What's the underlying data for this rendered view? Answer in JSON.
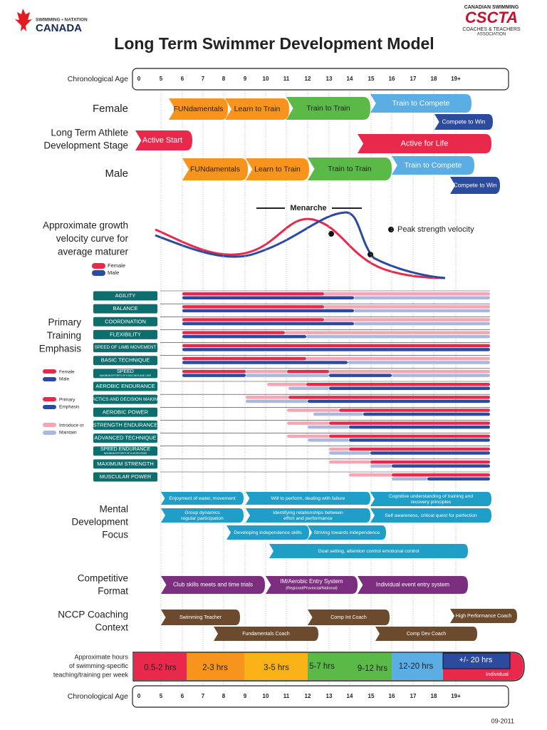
{
  "header": {
    "logo_left": {
      "line1": "SWIMMING • NATATION",
      "line2": "CANADA"
    },
    "logo_right": {
      "line1": "CANADIAN SWIMMING",
      "line2": "CSCTA",
      "line3": "COACHES & TEACHERS",
      "line4": "ASSOCIATION"
    },
    "title": "Long Term Swimmer Development Model"
  },
  "age_axis": {
    "label": "Chronological Age",
    "ages": [
      "0",
      "5",
      "6",
      "7",
      "8",
      "9",
      "10",
      "11",
      "12",
      "13",
      "14",
      "15",
      "16",
      "17",
      "18",
      "19+"
    ]
  },
  "ltad": {
    "female_label": "Female",
    "stage_label": [
      "Long Term Athlete",
      "Development Stage"
    ],
    "male_label": "Male",
    "female_stages": [
      "FUNdamentals",
      "Learn to Train",
      "Train to Train",
      "Train to Compete",
      "Compete to Win"
    ],
    "shared_stages": [
      "Active Start",
      "Active for Life"
    ],
    "male_stages": [
      "FUNdamentals",
      "Learn to Train",
      "Train to Train",
      "Train to Compete",
      "Compete to Win"
    ]
  },
  "growth": {
    "label": [
      "Approximate growth",
      "velocity curve for",
      "average maturer"
    ],
    "legend": [
      "Female",
      "Male"
    ],
    "menarche": "Menarche",
    "peak_strength": "Peak strength velocity"
  },
  "training": {
    "label": [
      "Primary",
      "Training",
      "Emphasis"
    ],
    "legend": {
      "sexes": [
        "Female",
        "Male"
      ],
      "primary": [
        "Primary",
        "Emphasis"
      ],
      "introduce": [
        "Introduce or",
        "Maintain"
      ]
    },
    "items": [
      {
        "name": "AGILITY"
      },
      {
        "name": "BALANCE"
      },
      {
        "name": "COORDINATION"
      },
      {
        "name": "FLEXIBILITY"
      },
      {
        "name": "SPEED OF LIMB MOVEMENT"
      },
      {
        "name": "BASIC TECHNIQUE"
      },
      {
        "name": "SPEED",
        "note": "MAXIMUM EFFORTS OF 8 SECONDS AND LESS"
      },
      {
        "name": "AEROBIC ENDURANCE"
      },
      {
        "name": "TACTICS AND DECISION MAKING"
      },
      {
        "name": "AEROBIC POWER"
      },
      {
        "name": "STRENGTH ENDURANCE"
      },
      {
        "name": "ADVANCED TECHNIQUE"
      },
      {
        "name": "SPEED ENDURANCE",
        "note": "MAXIMUM EFFORTS OF 8-45 SECONDS"
      },
      {
        "name": "MAXIMUM STRENGTH"
      },
      {
        "name": "MUSCULAR POWER"
      }
    ]
  },
  "mental": {
    "label": [
      "Mental",
      "Development",
      "Focus"
    ],
    "items": [
      [
        "Enjoyment of water, movement"
      ],
      [
        "Group dynamics",
        "regular participation"
      ],
      [
        "Will to perform, dealing with failure"
      ],
      [
        "Identifying relationships between",
        "effort and performance"
      ],
      [
        "Cognitive understanding of training and",
        "recovery principles"
      ],
      [
        "Self awareness, critical quest for perfection"
      ],
      [
        "Developing independence skills"
      ],
      [
        "Striving towards independence"
      ],
      [
        "Goal setting, attention control emotional control"
      ]
    ]
  },
  "competitive": {
    "label": [
      "Competitive",
      "Format"
    ],
    "items": [
      [
        "Club skills meets and time trials"
      ],
      [
        "IM/Aerobic Entry System",
        "(Regional/Provincial/National)"
      ],
      [
        "Individual event entry system"
      ]
    ]
  },
  "nccp": {
    "label": [
      "NCCP Coaching",
      "Context"
    ],
    "items": [
      "Swimming Teacher",
      "Fundamentals Coach",
      "Comp Int Coach",
      "Comp Dev Coach",
      "High Performance Coach"
    ]
  },
  "hours": {
    "label": [
      "Approximate hours",
      "of swimming-specific",
      "teaching/training per week"
    ],
    "items": [
      "0.5-2 hrs",
      "2-3 hrs",
      "3-5 hrs",
      "5-7 hrs",
      "9-12 hrs",
      "12-20 hrs",
      "+/- 20 hrs"
    ],
    "individual": "Individual"
  },
  "footer": "09-2011"
}
